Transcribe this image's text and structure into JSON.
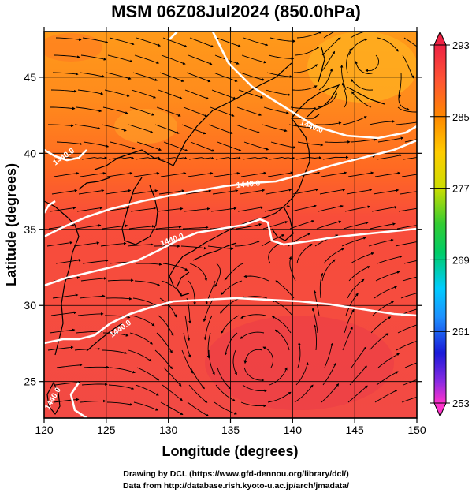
{
  "title": "MSM 06Z08Jul2024 (850.0hPa)",
  "xlabel": "Longitude (degrees)",
  "ylabel": "Latitude  (degrees)",
  "x_ticks": [
    "120",
    "125",
    "130",
    "135",
    "140",
    "145",
    "150"
  ],
  "y_ticks": [
    "25",
    "30",
    "35",
    "40",
    "45"
  ],
  "colorbar": {
    "ticks": [
      "293",
      "285",
      "277",
      "269",
      "261",
      "253"
    ],
    "min": 253,
    "max": 293,
    "colors": [
      "#ff33cc",
      "#8a2be2",
      "#1a1ad9",
      "#1e90ff",
      "#00ccff",
      "#00cc66",
      "#33cc33",
      "#ccdd00",
      "#ffcc00",
      "#ff8800",
      "#ff5533",
      "#ee2244"
    ]
  },
  "contour_labels": [
    "1440.0",
    "1440.0",
    "1440.0",
    "1440.0",
    "1440.0",
    "1440.0"
  ],
  "footer": {
    "line1": "Drawing by DCL (https://www.gfd-dennou.org/library/dcl/)",
    "line2": "Data from http://database.rish.kyoto-u.ac.jp/arch/jmadata/"
  }
}
